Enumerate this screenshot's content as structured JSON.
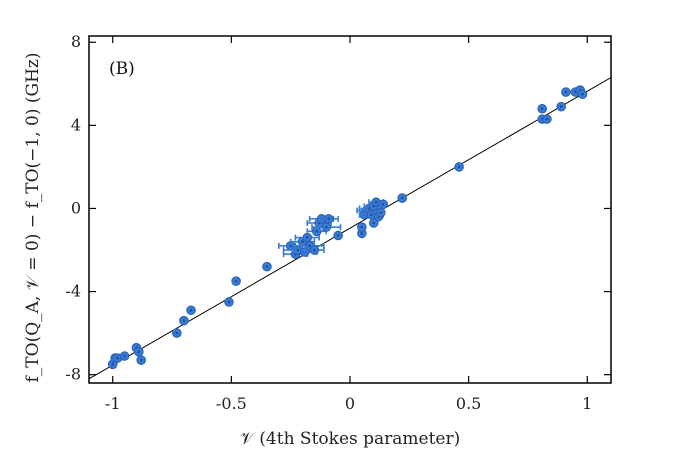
{
  "chart_data": {
    "type": "scatter",
    "panel_label": "(B)",
    "xlabel": "𝒱 (4th Stokes parameter)",
    "ylabel": "f_TO(Q_A, 𝒱 = 0) − f_TO(−1, 0) (GHz)",
    "xlim": [
      -1.1,
      1.1
    ],
    "ylim": [
      -8.4,
      8.3
    ],
    "x_ticks": [
      -1,
      -0.5,
      0,
      0.5,
      1
    ],
    "x_tick_labels": [
      "-1",
      "-0.5",
      "0",
      "0.5",
      "1"
    ],
    "y_ticks": [
      -8,
      -4,
      0,
      4,
      8
    ],
    "y_tick_labels": [
      "-8",
      "-4",
      "0",
      "4",
      "8"
    ],
    "grid": false,
    "colors": {
      "points": "#3a7bd5",
      "fit": "#000000"
    },
    "fit_line": {
      "x": [
        -1.1,
        1.1
      ],
      "y": [
        -8.2,
        6.3
      ]
    },
    "series": [
      {
        "points": [
          {
            "x": -1.0,
            "y": -7.5
          },
          {
            "x": -0.99,
            "y": -7.2
          },
          {
            "x": -0.98,
            "y": -7.2
          },
          {
            "x": -0.95,
            "y": -7.1
          },
          {
            "x": -0.9,
            "y": -6.7
          },
          {
            "x": -0.89,
            "y": -6.9
          },
          {
            "x": -0.88,
            "y": -7.3
          },
          {
            "x": -0.73,
            "y": -6.0
          },
          {
            "x": -0.7,
            "y": -5.4
          },
          {
            "x": -0.67,
            "y": -4.9
          },
          {
            "x": -0.51,
            "y": -4.5
          },
          {
            "x": -0.48,
            "y": -3.5
          },
          {
            "x": -0.35,
            "y": -2.8
          },
          {
            "x": -0.25,
            "y": -1.8,
            "xerr": 0.05
          },
          {
            "x": -0.23,
            "y": -2.2,
            "xerr": 0.05
          },
          {
            "x": -0.22,
            "y": -2.0,
            "xerr": 0.06
          },
          {
            "x": -0.2,
            "y": -1.6,
            "xerr": 0.05
          },
          {
            "x": -0.19,
            "y": -2.1,
            "xerr": 0.05
          },
          {
            "x": -0.18,
            "y": -1.4,
            "xerr": 0.05
          },
          {
            "x": -0.17,
            "y": -1.8,
            "xerr": 0.06
          },
          {
            "x": -0.15,
            "y": -2.0,
            "xerr": 0.04
          },
          {
            "x": -0.14,
            "y": -1.1,
            "xerr": 0.04
          },
          {
            "x": -0.13,
            "y": -0.7,
            "xerr": 0.05
          },
          {
            "x": -0.12,
            "y": -0.5,
            "xerr": 0.05
          },
          {
            "x": -0.1,
            "y": -0.9,
            "xerr": 0.06
          },
          {
            "x": -0.09,
            "y": -0.5,
            "xerr": 0.04
          },
          {
            "x": -0.05,
            "y": -1.3
          },
          {
            "x": 0.05,
            "y": -1.2
          },
          {
            "x": 0.05,
            "y": -0.9
          },
          {
            "x": 0.06,
            "y": -0.3
          },
          {
            "x": 0.07,
            "y": -0.1,
            "xerr": 0.04
          },
          {
            "x": 0.08,
            "y": 0.0,
            "xerr": 0.04
          },
          {
            "x": 0.09,
            "y": -0.3,
            "xerr": 0.05
          },
          {
            "x": 0.1,
            "y": -0.7
          },
          {
            "x": 0.1,
            "y": 0.1,
            "xerr": 0.04
          },
          {
            "x": 0.11,
            "y": 0.3,
            "xerr": 0.03
          },
          {
            "x": 0.12,
            "y": -0.4
          },
          {
            "x": 0.13,
            "y": -0.2
          },
          {
            "x": 0.14,
            "y": 0.2
          },
          {
            "x": 0.22,
            "y": 0.5
          },
          {
            "x": 0.46,
            "y": 2.0
          },
          {
            "x": 0.81,
            "y": 4.8
          },
          {
            "x": 0.81,
            "y": 4.3
          },
          {
            "x": 0.83,
            "y": 4.3
          },
          {
            "x": 0.89,
            "y": 4.9
          },
          {
            "x": 0.91,
            "y": 5.6
          },
          {
            "x": 0.95,
            "y": 5.6
          },
          {
            "x": 0.97,
            "y": 5.7
          },
          {
            "x": 0.98,
            "y": 5.5
          }
        ]
      }
    ]
  }
}
